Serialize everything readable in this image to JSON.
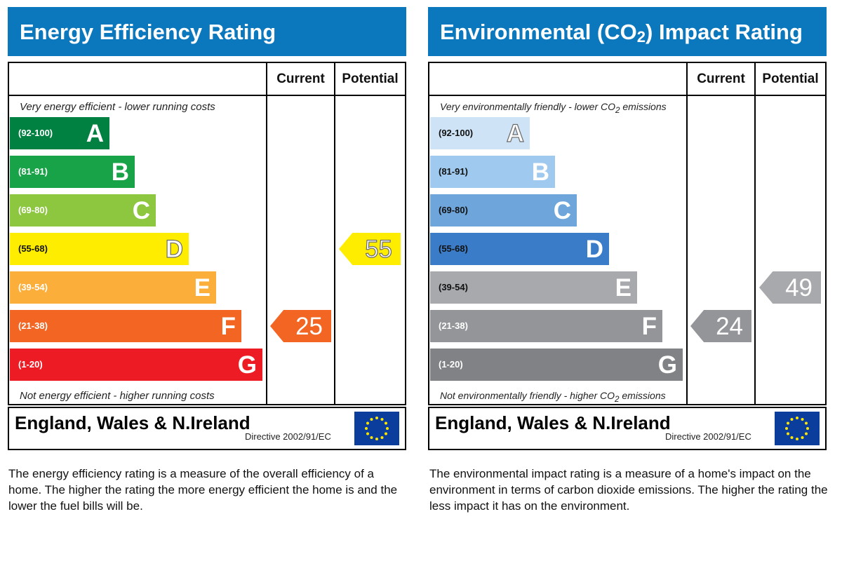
{
  "energy": {
    "title": "Energy Efficiency Rating",
    "col_current": "Current",
    "col_potential": "Potential",
    "caption_top": "Very energy efficient - lower running costs",
    "caption_bottom": "Not energy efficient - higher running costs",
    "bands": [
      {
        "range": "(92-100)",
        "letter": "A",
        "color": "#008041"
      },
      {
        "range": "(81-91)",
        "letter": "B",
        "color": "#19a348"
      },
      {
        "range": "(69-80)",
        "letter": "C",
        "color": "#8dc63f"
      },
      {
        "range": "(55-68)",
        "letter": "D",
        "color": "#ffed00"
      },
      {
        "range": "(39-54)",
        "letter": "E",
        "color": "#fbae3a"
      },
      {
        "range": "(21-38)",
        "letter": "F",
        "color": "#f26522"
      },
      {
        "range": "(1-20)",
        "letter": "G",
        "color": "#ed1c24"
      }
    ],
    "current_value": "25",
    "current_color": "#f26522",
    "potential_value": "55",
    "potential_color": "#ffed00",
    "region": "England, Wales & N.Ireland",
    "directive": "Directive 2002/91/EC",
    "description": "The energy efficiency rating is a measure of the overall efficiency of a home. The higher the rating the more energy efficient the home is and the lower the fuel bills will be."
  },
  "environmental": {
    "title_pre": "Environmental (CO",
    "title_sub": "2",
    "title_post": ") Impact Rating",
    "col_current": "Current",
    "col_potential": "Potential",
    "caption_top_pre": "Very environmentally friendly - lower CO",
    "caption_top_sub": "2",
    "caption_top_post": " emissions",
    "caption_bottom_pre": "Not environmentally friendly - higher CO",
    "caption_bottom_sub": "2",
    "caption_bottom_post": " emissions",
    "bands": [
      {
        "range": "(92-100)",
        "letter": "A",
        "color": "#cfe3f6"
      },
      {
        "range": "(81-91)",
        "letter": "B",
        "color": "#9fc9ee"
      },
      {
        "range": "(69-80)",
        "letter": "C",
        "color": "#6ea6dc"
      },
      {
        "range": "(55-68)",
        "letter": "D",
        "color": "#3a7cc8"
      },
      {
        "range": "(39-54)",
        "letter": "E",
        "color": "#a8a9ad"
      },
      {
        "range": "(21-38)",
        "letter": "F",
        "color": "#939598"
      },
      {
        "range": "(1-20)",
        "letter": "G",
        "color": "#808285"
      }
    ],
    "current_value": "24",
    "current_color": "#939598",
    "potential_value": "49",
    "potential_color": "#a8a9ad",
    "region": "England, Wales & N.Ireland",
    "directive": "Directive 2002/91/EC",
    "description": "The environmental impact rating is a measure of a home's impact on the environment in terms of carbon dioxide emissions. The higher the rating the less impact it has on the environment."
  }
}
